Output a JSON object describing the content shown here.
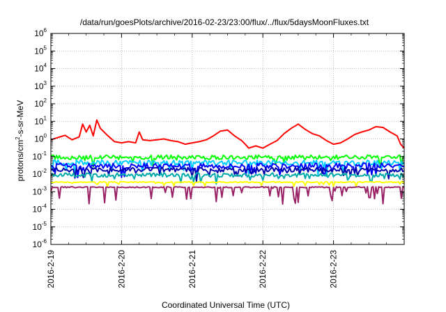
{
  "chart_data": {
    "type": "line",
    "title": "/data/run/goesPlots/archive/2016-02-23/23:00/flux/../flux/5daysMoonFluxes.txt",
    "xlabel": "Coordinated Universal Time (UTC)",
    "ylabel": {
      "main": "protons/cm",
      "sup": "2",
      "rest": "-s-sr-MeV"
    },
    "x_ticks": [
      "2016-2-19",
      "2016-2-20",
      "2016-2-21",
      "2016-2-22",
      "2016-2-23"
    ],
    "xlim": [
      0,
      5
    ],
    "ylim_log10": [
      -6,
      6
    ],
    "y_scale": "log",
    "y_tick_exponents": [
      -6,
      -5,
      -4,
      -3,
      -2,
      -1,
      0,
      1,
      2,
      3,
      4,
      5,
      6
    ],
    "y_tick_base": "10",
    "grid": true,
    "series": [
      {
        "color": "#ff0000",
        "x": [
          0,
          0.1,
          0.2,
          0.3,
          0.4,
          0.45,
          0.5,
          0.55,
          0.6,
          0.65,
          0.7,
          0.8,
          0.9,
          1.0,
          1.1,
          1.2,
          1.25,
          1.3,
          1.4,
          1.5,
          1.6,
          1.7,
          1.8,
          1.9,
          2.0,
          2.1,
          2.2,
          2.3,
          2.4,
          2.5,
          2.6,
          2.7,
          2.75,
          2.8,
          2.9,
          3.0,
          3.1,
          3.2,
          3.3,
          3.4,
          3.5,
          3.6,
          3.7,
          3.8,
          3.9,
          4.0,
          4.1,
          4.2,
          4.3,
          4.4,
          4.5,
          4.6,
          4.7,
          4.8,
          4.9,
          4.95,
          5.0
        ],
        "y": [
          0.9,
          1.2,
          1.6,
          0.9,
          1.3,
          7,
          2.5,
          6,
          1.5,
          12,
          4,
          1.6,
          0.7,
          0.6,
          0.7,
          0.6,
          2.5,
          0.9,
          0.8,
          0.9,
          1.0,
          0.8,
          0.7,
          0.5,
          0.6,
          0.7,
          0.9,
          1.5,
          2.8,
          3.2,
          1.5,
          0.8,
          0.5,
          0.3,
          0.4,
          0.3,
          0.5,
          0.8,
          2.0,
          4.0,
          7.0,
          3.5,
          2.0,
          1.5,
          0.8,
          0.5,
          0.6,
          1.0,
          1.8,
          2.5,
          3.2,
          5.0,
          4.5,
          2.5,
          1.5,
          0.5,
          0.3
        ]
      },
      {
        "color": "#00ff00",
        "base": 0.09,
        "amp": 0.25,
        "spike": 0.55
      },
      {
        "color": "#00ccff",
        "base": 0.045,
        "amp": 0.3,
        "spike": 0.7
      },
      {
        "color": "#0000ff",
        "base": 0.03,
        "amp": 0.3,
        "spike": 0.6
      },
      {
        "color": "#0000aa",
        "base": 0.018,
        "amp": 0.25,
        "spike": 0.6
      },
      {
        "color": "#00aaaa",
        "base": 0.009,
        "amp": 0.25,
        "spike": 0.5
      },
      {
        "color": "#ffff00",
        "base": 0.0035,
        "amp": 0.06,
        "spike": 0.25
      },
      {
        "color": "#992266",
        "base": 0.0018,
        "amp": 0.06,
        "spike": 1.0
      }
    ]
  }
}
